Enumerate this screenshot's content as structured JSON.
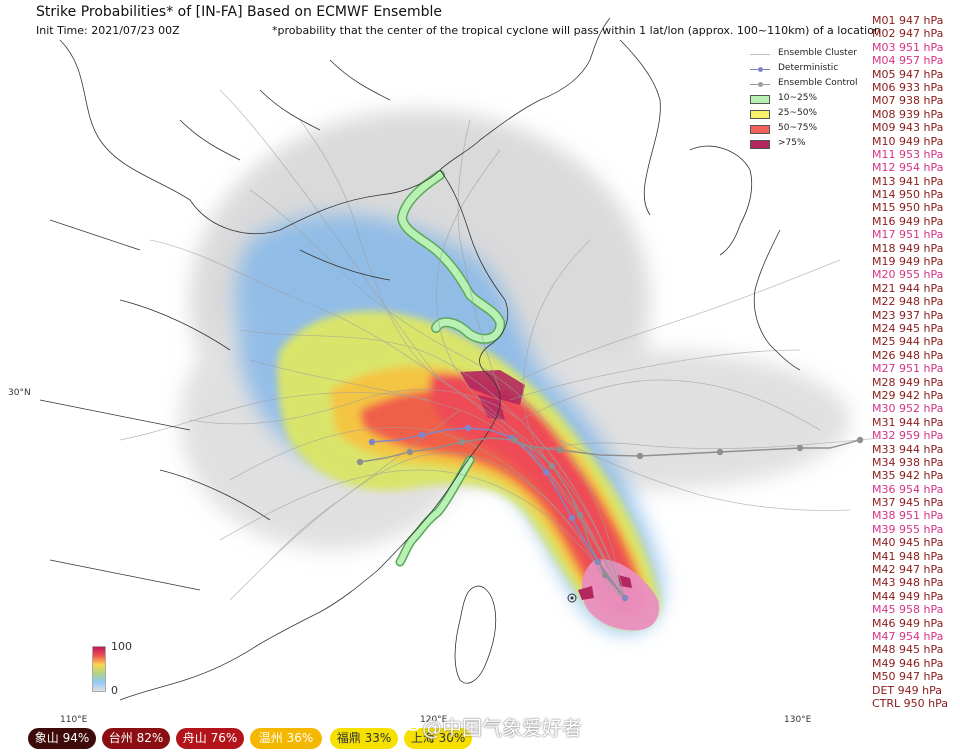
{
  "header": {
    "title": "Strike Probabilities* of [IN-FA] Based on ECMWF Ensemble",
    "init_time": "Init Time: 2021/07/23 00Z",
    "note": "*probability that the center of the tropical cyclone will pass within 1 lat/lon (approx. 100~110km) of a location"
  },
  "legend": {
    "items": [
      {
        "label": "Ensemble Cluster",
        "kind": "line",
        "color": "#bdbdbd"
      },
      {
        "label": "Deterministic",
        "kind": "line-dot",
        "color": "#7e86c9"
      },
      {
        "label": "Ensemble Control",
        "kind": "line-dot",
        "color": "#9e9e9e"
      },
      {
        "label": "10~25%",
        "kind": "patch",
        "color": "#b9f0b4"
      },
      {
        "label": "25~50%",
        "kind": "patch",
        "color": "#f7f26a"
      },
      {
        "label": "50~75%",
        "kind": "patch",
        "color": "#f0605a"
      },
      {
        "label": ">75%",
        "kind": "patch",
        "color": "#b3275e"
      }
    ]
  },
  "members": [
    {
      "text": "M01 947 hPa",
      "color": "#8b1a1a"
    },
    {
      "text": "M02 947 hPa",
      "color": "#8b1a1a"
    },
    {
      "text": "M03 951 hPa",
      "color": "#d63384"
    },
    {
      "text": "M04 957 hPa",
      "color": "#d63384"
    },
    {
      "text": "M05 947 hPa",
      "color": "#8b1a1a"
    },
    {
      "text": "M06 933 hPa",
      "color": "#8b1a1a"
    },
    {
      "text": "M07 938 hPa",
      "color": "#8b1a1a"
    },
    {
      "text": "M08 939 hPa",
      "color": "#8b1a1a"
    },
    {
      "text": "M09 943 hPa",
      "color": "#8b1a1a"
    },
    {
      "text": "M10 949 hPa",
      "color": "#8b1a1a"
    },
    {
      "text": "M11 953 hPa",
      "color": "#d63384"
    },
    {
      "text": "M12 954 hPa",
      "color": "#d63384"
    },
    {
      "text": "M13 941 hPa",
      "color": "#8b1a1a"
    },
    {
      "text": "M14 950 hPa",
      "color": "#8b1a1a"
    },
    {
      "text": "M15 950 hPa",
      "color": "#8b1a1a"
    },
    {
      "text": "M16 949 hPa",
      "color": "#8b1a1a"
    },
    {
      "text": "M17 951 hPa",
      "color": "#d63384"
    },
    {
      "text": "M18 949 hPa",
      "color": "#8b1a1a"
    },
    {
      "text": "M19 949 hPa",
      "color": "#8b1a1a"
    },
    {
      "text": "M20 955 hPa",
      "color": "#d63384"
    },
    {
      "text": "M21 944 hPa",
      "color": "#8b1a1a"
    },
    {
      "text": "M22 948 hPa",
      "color": "#8b1a1a"
    },
    {
      "text": "M23 937 hPa",
      "color": "#8b1a1a"
    },
    {
      "text": "M24 945 hPa",
      "color": "#8b1a1a"
    },
    {
      "text": "M25 944 hPa",
      "color": "#8b1a1a"
    },
    {
      "text": "M26 948 hPa",
      "color": "#8b1a1a"
    },
    {
      "text": "M27 951 hPa",
      "color": "#d63384"
    },
    {
      "text": "M28 949 hPa",
      "color": "#8b1a1a"
    },
    {
      "text": "M29 942 hPa",
      "color": "#8b1a1a"
    },
    {
      "text": "M30 952 hPa",
      "color": "#d63384"
    },
    {
      "text": "M31 944 hPa",
      "color": "#8b1a1a"
    },
    {
      "text": "M32 959 hPa",
      "color": "#d63384"
    },
    {
      "text": "M33 944 hPa",
      "color": "#8b1a1a"
    },
    {
      "text": "M34 938 hPa",
      "color": "#8b1a1a"
    },
    {
      "text": "M35 942 hPa",
      "color": "#8b1a1a"
    },
    {
      "text": "M36 954 hPa",
      "color": "#d63384"
    },
    {
      "text": "M37 945 hPa",
      "color": "#8b1a1a"
    },
    {
      "text": "M38 951 hPa",
      "color": "#d63384"
    },
    {
      "text": "M39 955 hPa",
      "color": "#d63384"
    },
    {
      "text": "M40 945 hPa",
      "color": "#8b1a1a"
    },
    {
      "text": "M41 948 hPa",
      "color": "#8b1a1a"
    },
    {
      "text": "M42 947 hPa",
      "color": "#8b1a1a"
    },
    {
      "text": "M43 948 hPa",
      "color": "#8b1a1a"
    },
    {
      "text": "M44 949 hPa",
      "color": "#8b1a1a"
    },
    {
      "text": "M45 958 hPa",
      "color": "#d63384"
    },
    {
      "text": "M46 949 hPa",
      "color": "#8b1a1a"
    },
    {
      "text": "M47 954 hPa",
      "color": "#d63384"
    },
    {
      "text": "M48 945 hPa",
      "color": "#8b1a1a"
    },
    {
      "text": "M49 946 hPa",
      "color": "#8b1a1a"
    },
    {
      "text": "M50 947 hPa",
      "color": "#8b1a1a"
    },
    {
      "text": "DET 949 hPa",
      "color": "#8b1a1a"
    },
    {
      "text": "CTRL 950 hPa",
      "color": "#8b1a1a"
    }
  ],
  "colorbar": {
    "max_label": "100",
    "min_label": "0"
  },
  "axes": {
    "lat_30": "30°N",
    "lon_110": "110°E",
    "lon_120": "120°E",
    "lon_130": "130°E"
  },
  "badges": [
    {
      "text": "象山 94%",
      "bg": "#3e0a0a",
      "fg": "#ffffff"
    },
    {
      "text": "台州 82%",
      "bg": "#8b0f12",
      "fg": "#ffffff"
    },
    {
      "text": "舟山 76%",
      "bg": "#b3141a",
      "fg": "#ffffff"
    },
    {
      "text": "温州 36%",
      "bg": "#f5b800",
      "fg": "#ffffff"
    },
    {
      "text": "福鼎 33%",
      "bg": "#f5e000",
      "fg": "#333333"
    },
    {
      "text": "上海 30%",
      "bg": "#f5e000",
      "fg": "#333333"
    }
  ],
  "watermark": "@中国气象爱好者"
}
